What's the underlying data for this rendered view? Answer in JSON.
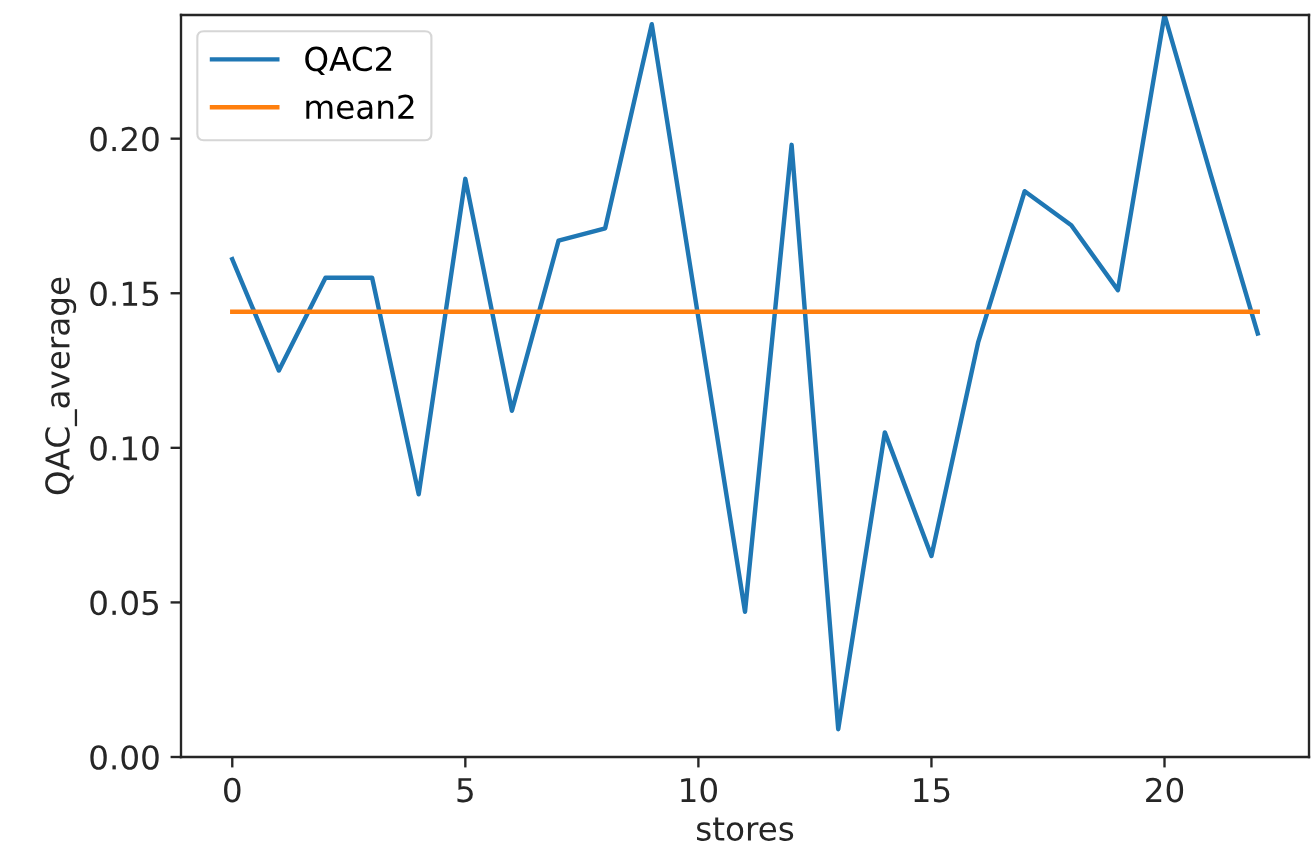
{
  "chart_data": {
    "type": "line",
    "xlabel": "stores",
    "ylabel": "QAC_average",
    "x": [
      0,
      1,
      2,
      3,
      4,
      5,
      6,
      7,
      8,
      9,
      10,
      11,
      12,
      13,
      14,
      15,
      16,
      17,
      18,
      19,
      20,
      21,
      22
    ],
    "series": [
      {
        "name": "QAC2",
        "color": "#1f77b4",
        "values": [
          0.161,
          0.125,
          0.155,
          0.155,
          0.085,
          0.187,
          0.112,
          0.167,
          0.171,
          0.237,
          0.142,
          0.047,
          0.198,
          0.009,
          0.105,
          0.065,
          0.134,
          0.183,
          0.172,
          0.151,
          0.24,
          0.188,
          0.137
        ]
      },
      {
        "name": "mean2",
        "color": "#ff7f0e",
        "x": [
          0,
          22
        ],
        "values": [
          0.144,
          0.144
        ]
      }
    ],
    "xlim": [
      -1.1,
      23.1
    ],
    "xticks": [
      0,
      5,
      10,
      15,
      20
    ],
    "ylim": [
      0,
      0.24
    ],
    "yticks": [
      {
        "value": 0,
        "label": "0.00"
      },
      {
        "value": 0.05,
        "label": "0.05"
      },
      {
        "value": 0.1,
        "label": "0.10"
      },
      {
        "value": 0.15,
        "label": "0.15"
      },
      {
        "value": 0.2,
        "label": "0.20"
      }
    ],
    "grid": false,
    "legend": "top left",
    "line_style": "solid",
    "marker": "none"
  }
}
